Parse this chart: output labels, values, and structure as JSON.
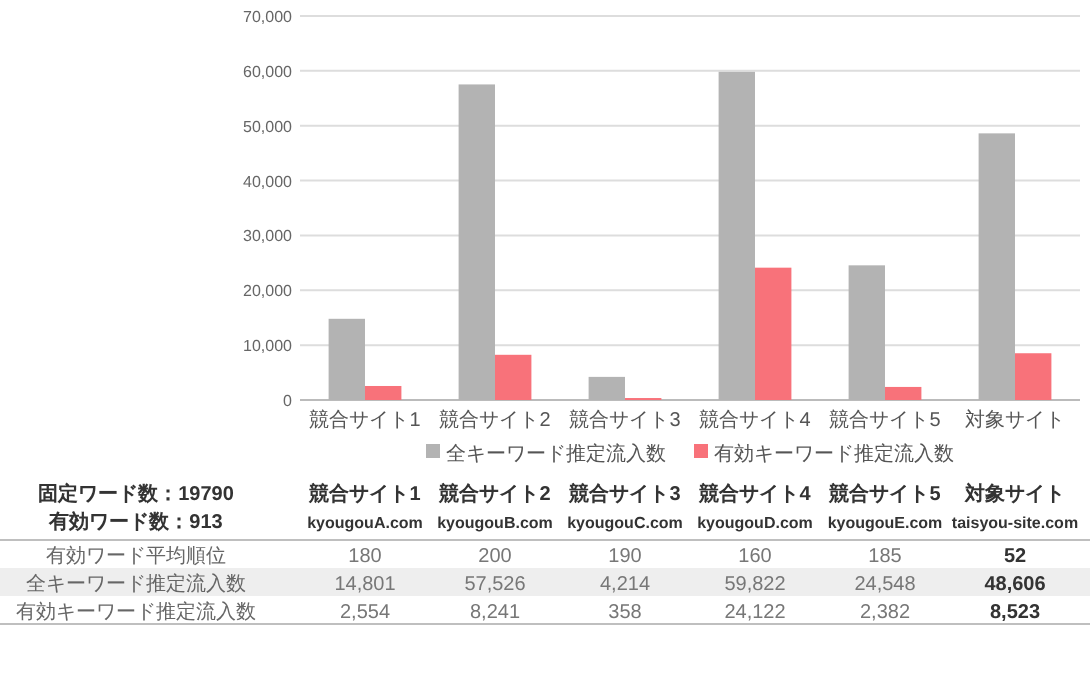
{
  "chart_data": {
    "type": "bar",
    "categories": [
      "競合サイト1",
      "競合サイト2",
      "競合サイト3",
      "競合サイト4",
      "競合サイト5",
      "対象サイト"
    ],
    "series": [
      {
        "name": "全キーワード推定流入数",
        "color": "#b3b3b3",
        "values": [
          14801,
          57526,
          4214,
          59822,
          24548,
          48606
        ],
        "value_labels": [
          "14,801",
          "57,526",
          "4,214",
          "59,822",
          "24,548",
          "48,606"
        ]
      },
      {
        "name": "有効キーワード推定流入数",
        "color": "#f8727a",
        "values": [
          2554,
          8241,
          358,
          24122,
          2382,
          8523
        ],
        "value_labels": [
          "2,554",
          "8,241",
          "358",
          "24,122",
          "2,382",
          "8,523"
        ]
      }
    ],
    "ylim": [
      0,
      70000
    ],
    "yticks": [
      0,
      {
        "value": 10000,
        "label": "10,000"
      },
      {
        "value": 20000,
        "label": "20,000"
      },
      {
        "value": 30000,
        "label": "30,000"
      },
      {
        "value": 40000,
        "label": "40,000"
      },
      {
        "value": 50000,
        "label": "50,000"
      },
      {
        "value": 60000,
        "label": "60,000"
      },
      {
        "value": 70000,
        "label": "70,000"
      }
    ],
    "grid": "y",
    "legend": "bottom",
    "annotations": [
      "固定ワード数：19790",
      "有効ワード数：913",
      "有効ワード平均順位",
      "180",
      "200",
      "190",
      "160",
      "185",
      "52",
      "kyougouA.com",
      "kyougouB.com",
      "kyougouC.com",
      "kyougouD.com",
      "kyougouE.com",
      "taisyou-site.com"
    ]
  }
}
